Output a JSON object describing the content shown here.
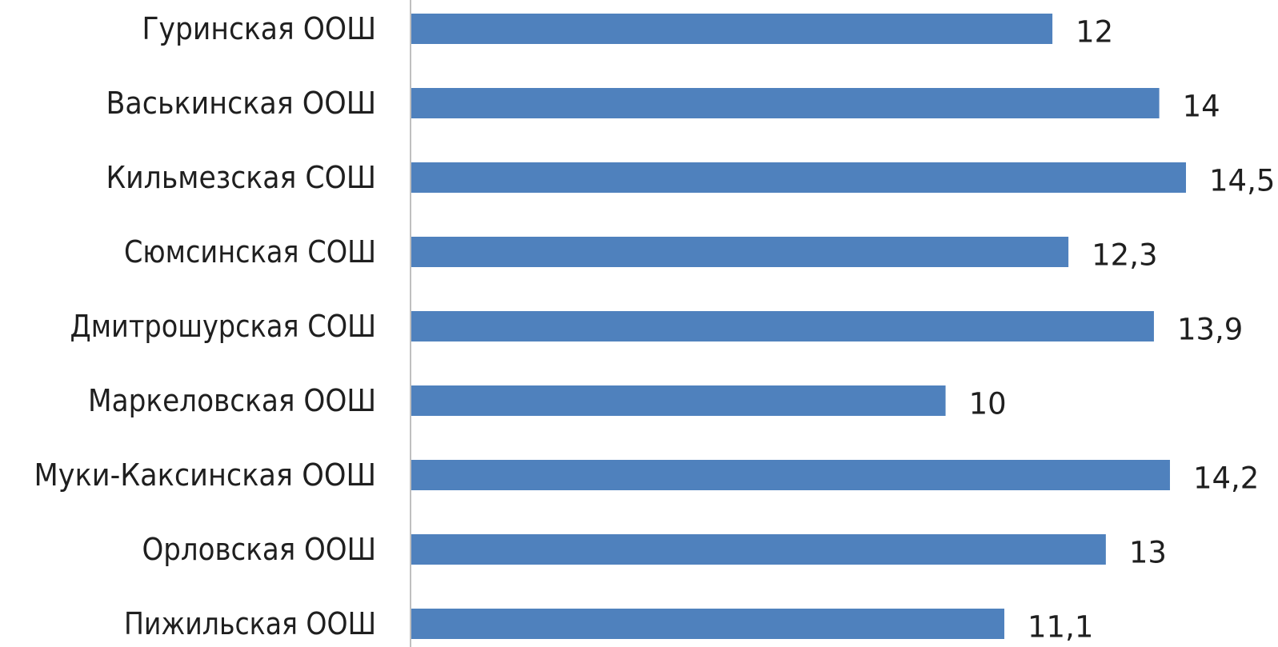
{
  "chart_data": {
    "type": "bar",
    "orientation": "horizontal",
    "categories": [
      "Гуринская ООШ",
      "Васькинская ООШ",
      "Кильмезская СОШ",
      "Сюмсинская СОШ",
      "Дмитрошурская СОШ",
      "Маркеловская ООШ",
      "Муки-Каксинская ООШ",
      "Орловская ООШ",
      "Пижильская ООШ"
    ],
    "values": [
      12,
      14,
      14.5,
      12.3,
      13.9,
      10,
      14.2,
      13,
      11.1
    ],
    "value_labels": [
      "12",
      "14",
      "14,5",
      "12,3",
      "13,9",
      "10",
      "14,2",
      "13",
      "11,1"
    ],
    "xlim": [
      0,
      14.5
    ],
    "grid": false,
    "legend": "none",
    "colors": {
      "bar": "#4f81bd",
      "axis": "#bfbfbf",
      "text": "#1f1f1f"
    }
  }
}
